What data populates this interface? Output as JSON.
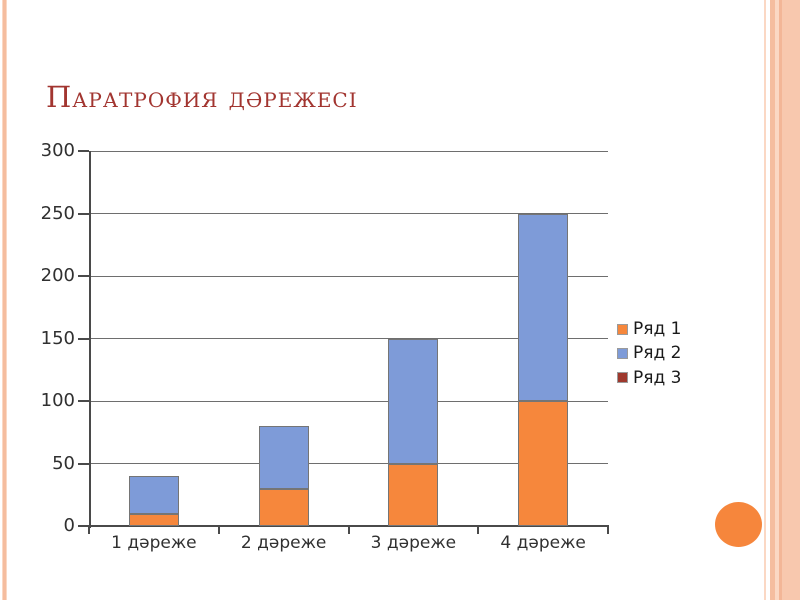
{
  "slide": {
    "title": "Паратрофия дәрежесі"
  },
  "theme": {
    "title_color": "#A23530",
    "accent_orange": "#F6863C",
    "stripe_mid": "#F5BD9F",
    "stripe_light": "#FBD8C4",
    "stripe_pale": "#F8C8AE",
    "stripe_dark": "#F3B697",
    "axis_color": "#4A4A4A",
    "grid_color": "#6E6E6E",
    "label_color": "#303030"
  },
  "chart_data": {
    "type": "bar",
    "stacked": true,
    "title": "",
    "xlabel": "",
    "ylabel": "",
    "categories": [
      "1 дәреже",
      "2 дәреже",
      "3 дәреже",
      "4 дәреже"
    ],
    "series": [
      {
        "name": "Ряд 1",
        "color": "#F6873C",
        "values": [
          10,
          30,
          50,
          100
        ]
      },
      {
        "name": "Ряд 2",
        "color": "#7E9BD8",
        "values": [
          30,
          50,
          100,
          150
        ]
      },
      {
        "name": "Ряд 3",
        "color": "#9E382D",
        "values": [
          0,
          0,
          0,
          0
        ]
      }
    ],
    "ylim": [
      0,
      300
    ],
    "ytick_step": 50,
    "yticks": [
      "0",
      "50",
      "100",
      "150",
      "200",
      "250",
      "300"
    ],
    "grid": true,
    "legend_position": "right"
  }
}
